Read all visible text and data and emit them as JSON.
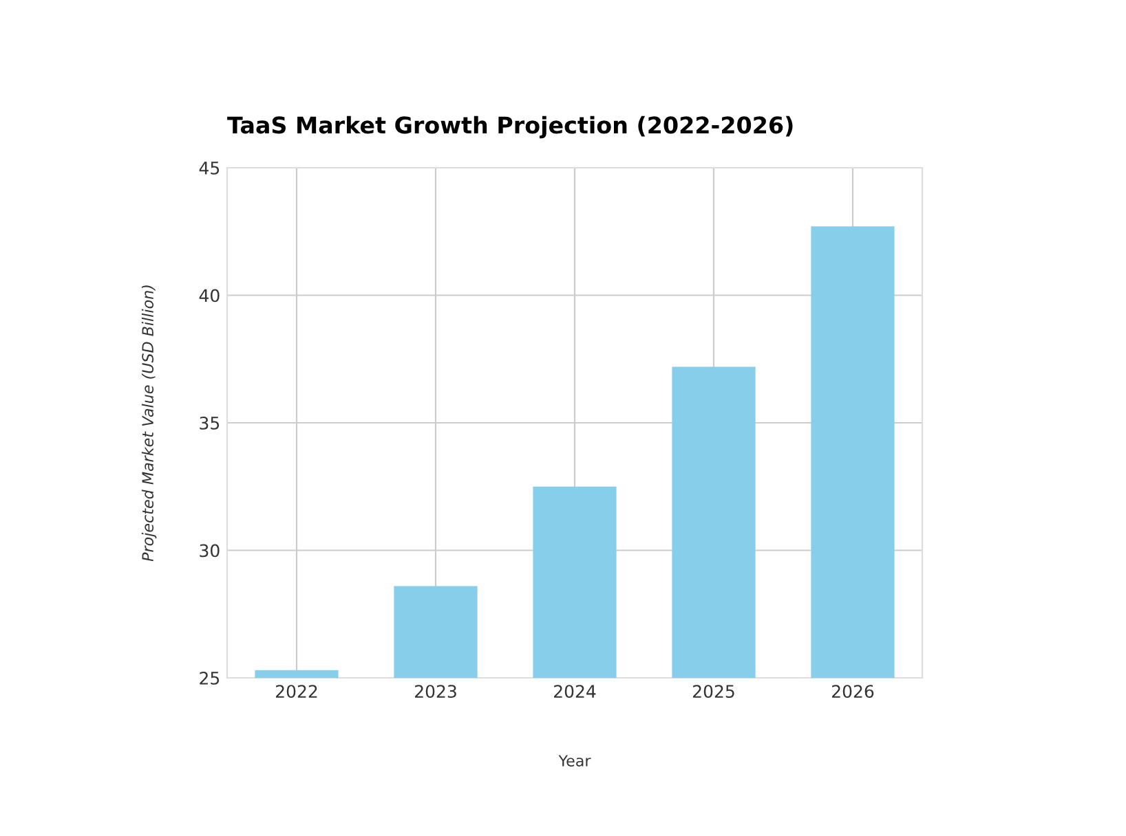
{
  "chart_data": {
    "type": "bar",
    "title": "TaaS Market Growth Projection (2022-2026)",
    "xlabel": "Year",
    "ylabel": "Projected Market Value (USD Billion)",
    "categories": [
      "2022",
      "2023",
      "2024",
      "2025",
      "2026"
    ],
    "values": [
      25.3,
      28.6,
      32.5,
      37.2,
      42.7
    ],
    "color": "#87ceeb",
    "ylim": [
      25,
      45
    ],
    "yticks": [
      25,
      30,
      35,
      40,
      45
    ],
    "grid": true
  }
}
